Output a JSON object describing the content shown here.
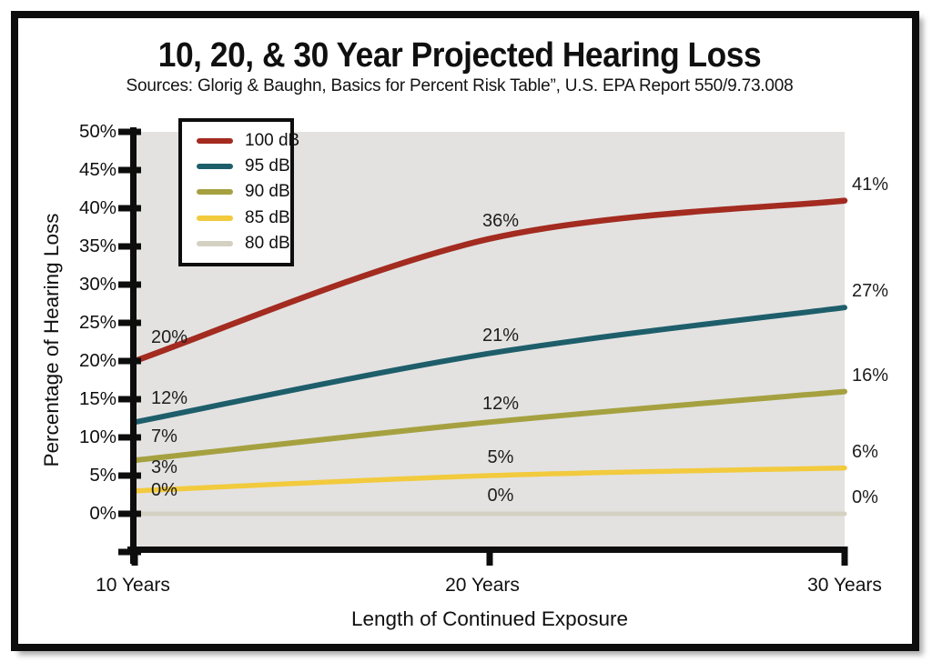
{
  "colors": {
    "plot_bg": "#E3E2E1",
    "axis": "#0D0D0D",
    "text": "#101010",
    "frame_border": "#0D0D0D"
  },
  "chart_data": {
    "type": "line",
    "title": "10, 20, & 30 Year Projected Hearing Loss",
    "subtitle": "Sources: Glorig & Baughn, Basics for Percent Risk Table”, U.S. EPA Report 550/9.73.008",
    "xlabel": "Length of Continued Exposure",
    "ylabel": "Percentage of Hearing Loss",
    "x_categories": [
      "10 Years",
      "20 Years",
      "30 Years"
    ],
    "x_values": [
      10,
      20,
      30
    ],
    "ylim": [
      0,
      50
    ],
    "ytick_step": 5,
    "y_ticks": [
      "50%",
      "45%",
      "40%",
      "35%",
      "30%",
      "25%",
      "20%",
      "15%",
      "10%",
      "5%",
      "0%"
    ],
    "grid": false,
    "legend_position": "top-left",
    "series": [
      {
        "name": "100 dB",
        "color": "#A32B20",
        "values": [
          20,
          36,
          41
        ],
        "labels": [
          "20%",
          "36%",
          "41%"
        ]
      },
      {
        "name": "95 dB",
        "color": "#1E5E6B",
        "values": [
          12,
          21,
          27
        ],
        "labels": [
          "12%",
          "21%",
          "27%"
        ]
      },
      {
        "name": "90 dB",
        "color": "#A6A140",
        "values": [
          7,
          12,
          16
        ],
        "labels": [
          "7%",
          "12%",
          "16%"
        ]
      },
      {
        "name": "85 dB",
        "color": "#F2CA3D",
        "values": [
          3,
          5,
          6
        ],
        "labels": [
          "3%",
          "5%",
          "6%"
        ]
      },
      {
        "name": "80 dB",
        "color": "#D4D1C2",
        "values": [
          0,
          0,
          0
        ],
        "labels": [
          "0%",
          "0%",
          "0%"
        ]
      }
    ]
  }
}
